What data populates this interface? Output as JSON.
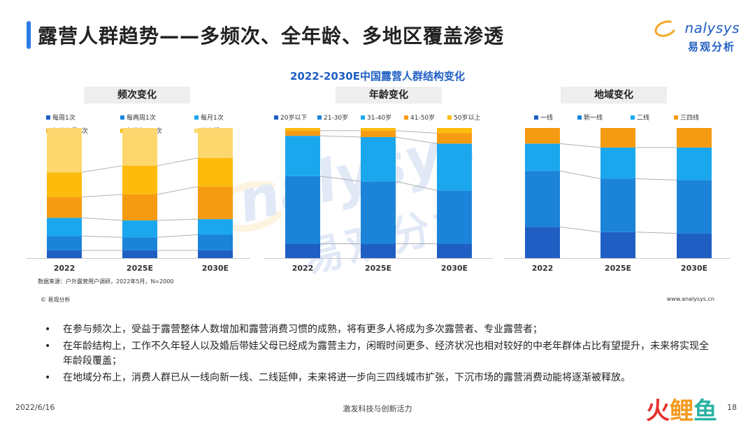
{
  "page": {
    "title": "露营人群趋势——多频次、全年龄、多地区覆盖渗透",
    "logo_en": "nalysys",
    "logo_cn": "易观分析",
    "watermark_en": "nalysys",
    "watermark_cn": "易观分析",
    "source": "数据来源：户外露营用户调研，2022年5月，N=2000",
    "copyright": "© 易观分析",
    "website": "www.analysys.cn",
    "bullets": [
      "在参与频次上，受益于露营整体人数增加和露营消费习惯的成熟，将有更多人将成为多次露营者、专业露营者；",
      "在年龄结构上，工作不久年轻人以及婚后带娃父母已经成为露营主力，闲暇时间更多、经济状况也相对较好的中老年群体占比有望提升，未来将实现全年龄段覆盖；",
      "在地域分布上，消费人群已从一线向新一线、二线延伸，未来将进一步向三四线城市扩张，下沉市场的露营消费动能将逐渐被释放。"
    ],
    "footer_date": "2022/6/16",
    "footer_center": "激发科技与创新活力",
    "page_number": "18",
    "brand_chars": [
      "火",
      "鲤",
      "鱼"
    ]
  },
  "chart_title": "2022-2030E中国露营人群结构变化",
  "colors": {
    "accent": "#1f5fc4",
    "title_bar": "#2c7be5",
    "orange": "#f5a623",
    "connector": "#b0b0b0"
  },
  "chart_data": [
    {
      "type": "bar",
      "stacked": true,
      "title": "频次变化",
      "categories": [
        "2022",
        "2025E",
        "2030E"
      ],
      "ylim": [
        0,
        100
      ],
      "legend_position": "top",
      "series": [
        {
          "name": "每周1次",
          "color": "#1f5fc4",
          "values": [
            6,
            6,
            6
          ]
        },
        {
          "name": "每两周1次",
          "color": "#1b84d8",
          "values": [
            11,
            10,
            12
          ]
        },
        {
          "name": "每月1次",
          "color": "#1ba7ee",
          "values": [
            14,
            13,
            12
          ]
        },
        {
          "name": "每两个月1次",
          "color": "#f59b12",
          "values": [
            16,
            20,
            25
          ]
        },
        {
          "name": "每半年1-2次",
          "color": "#fdbb0b",
          "values": [
            19,
            22,
            22
          ]
        },
        {
          "name": "不定期",
          "color": "#fdd76e",
          "values": [
            34,
            29,
            23
          ]
        }
      ]
    },
    {
      "type": "bar",
      "stacked": true,
      "title": "年龄变化",
      "categories": [
        "2022",
        "2025E",
        "2030E"
      ],
      "ylim": [
        0,
        100
      ],
      "legend_position": "top",
      "series": [
        {
          "name": "20岁以下",
          "color": "#1f5fc4",
          "values": [
            11,
            11,
            11
          ]
        },
        {
          "name": "21-30岁",
          "color": "#1b84d8",
          "values": [
            52,
            48,
            41
          ]
        },
        {
          "name": "31-40岁",
          "color": "#1ba7ee",
          "values": [
            31,
            34,
            36
          ]
        },
        {
          "name": "41-50岁",
          "color": "#f59b12",
          "values": [
            4,
            5,
            8
          ]
        },
        {
          "name": "50岁以上",
          "color": "#fdbb0b",
          "values": [
            2,
            2,
            4
          ]
        }
      ]
    },
    {
      "type": "bar",
      "stacked": true,
      "title": "地域变化",
      "categories": [
        "2022",
        "2025E",
        "2030E"
      ],
      "ylim": [
        0,
        100
      ],
      "legend_position": "top",
      "series": [
        {
          "name": "一线",
          "color": "#1f5fc4",
          "values": [
            24,
            20,
            19
          ]
        },
        {
          "name": "新一线",
          "color": "#1b84d8",
          "values": [
            43,
            41,
            41
          ]
        },
        {
          "name": "二线",
          "color": "#1ba7ee",
          "values": [
            21,
            24,
            25
          ]
        },
        {
          "name": "三四线",
          "color": "#f59b12",
          "values": [
            12,
            15,
            15
          ]
        }
      ]
    }
  ]
}
